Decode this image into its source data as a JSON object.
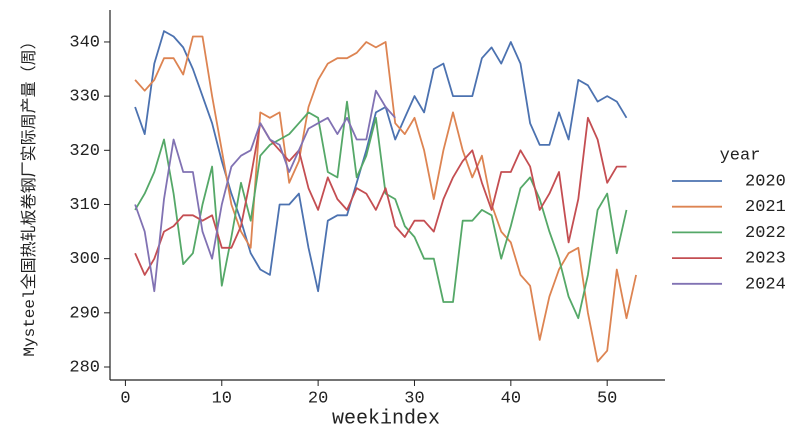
{
  "chart_data": {
    "type": "line",
    "x_label": "weekindex",
    "y_label": "Mysteel全国热轧板卷钢厂实际周产量（周）",
    "legend_title": "year",
    "legend": "right",
    "x": [
      1,
      2,
      3,
      4,
      5,
      6,
      7,
      8,
      9,
      10,
      11,
      12,
      13,
      14,
      15,
      16,
      17,
      18,
      19,
      20,
      21,
      22,
      23,
      24,
      25,
      26,
      27,
      28,
      29,
      30,
      31,
      32,
      33,
      34,
      35,
      36,
      37,
      38,
      39,
      40,
      41,
      42,
      43,
      44,
      45,
      46,
      47,
      48,
      49,
      50,
      51,
      52,
      53
    ],
    "xlim": [
      -1.6,
      56.0
    ],
    "xticks": [
      0,
      10,
      20,
      30,
      40,
      50
    ],
    "ylim": [
      277.6,
      345.9
    ],
    "yticks": [
      280,
      290,
      300,
      310,
      320,
      330,
      340
    ],
    "series": [
      {
        "name": "2020",
        "color": "#4c72b0",
        "values": [
          328,
          323,
          336,
          342,
          341,
          339,
          335,
          330,
          325,
          318,
          312,
          307,
          301,
          298,
          297,
          310,
          310,
          312,
          302,
          294,
          307,
          308,
          308,
          314,
          320,
          327,
          328,
          322,
          326,
          330,
          327,
          335,
          336,
          330,
          330,
          330,
          337,
          339,
          336,
          340,
          336,
          325,
          321,
          321,
          327,
          322,
          333,
          332,
          329,
          330,
          329,
          326,
          null
        ]
      },
      {
        "name": "2021",
        "color": "#dd8452",
        "values": [
          333,
          331,
          333,
          337,
          337,
          334,
          341,
          341,
          330,
          320,
          310,
          305,
          302,
          327,
          326,
          327,
          314,
          318,
          328,
          333,
          336,
          337,
          337,
          338,
          340,
          339,
          340,
          325,
          323,
          326,
          320,
          311,
          320,
          327,
          320,
          315,
          319,
          310,
          305,
          303,
          297,
          295,
          285,
          293,
          298,
          301,
          302,
          290,
          281,
          283,
          298,
          289,
          297
        ]
      },
      {
        "name": "2022",
        "color": "#55a868",
        "values": [
          309,
          312,
          316,
          322,
          312,
          299,
          301,
          310,
          317,
          295,
          304,
          314,
          307,
          319,
          321,
          322,
          323,
          325,
          327,
          326,
          316,
          315,
          329,
          315,
          319,
          326,
          312,
          311,
          306,
          304,
          300,
          300,
          292,
          292,
          307,
          307,
          309,
          308,
          300,
          306,
          313,
          315,
          311,
          305,
          300,
          293,
          289,
          297,
          309,
          312,
          301,
          309,
          null
        ]
      },
      {
        "name": "2023",
        "color": "#c44e52",
        "values": [
          301,
          297,
          300,
          305,
          306,
          308,
          308,
          307,
          308,
          302,
          302,
          306,
          315,
          325,
          322,
          320,
          318,
          320,
          313,
          309,
          315,
          311,
          309,
          313,
          312,
          309,
          313,
          306,
          304,
          307,
          307,
          305,
          311,
          315,
          318,
          320,
          314,
          309,
          316,
          316,
          320,
          317,
          309,
          312,
          316,
          303,
          311,
          326,
          322,
          314,
          317,
          317,
          null
        ]
      },
      {
        "name": "2024",
        "color": "#8172b3",
        "values": [
          310,
          305,
          294,
          311,
          322,
          316,
          316,
          305,
          300,
          310,
          317,
          319,
          320,
          325,
          322,
          321,
          316,
          320,
          324,
          325,
          326,
          323,
          326,
          322,
          322,
          331,
          328,
          326,
          null,
          null,
          null,
          null,
          null,
          null,
          null,
          null,
          null,
          null,
          null,
          null,
          null,
          null,
          null,
          null,
          null,
          null,
          null,
          null,
          null,
          null,
          null,
          null,
          null
        ]
      }
    ]
  }
}
